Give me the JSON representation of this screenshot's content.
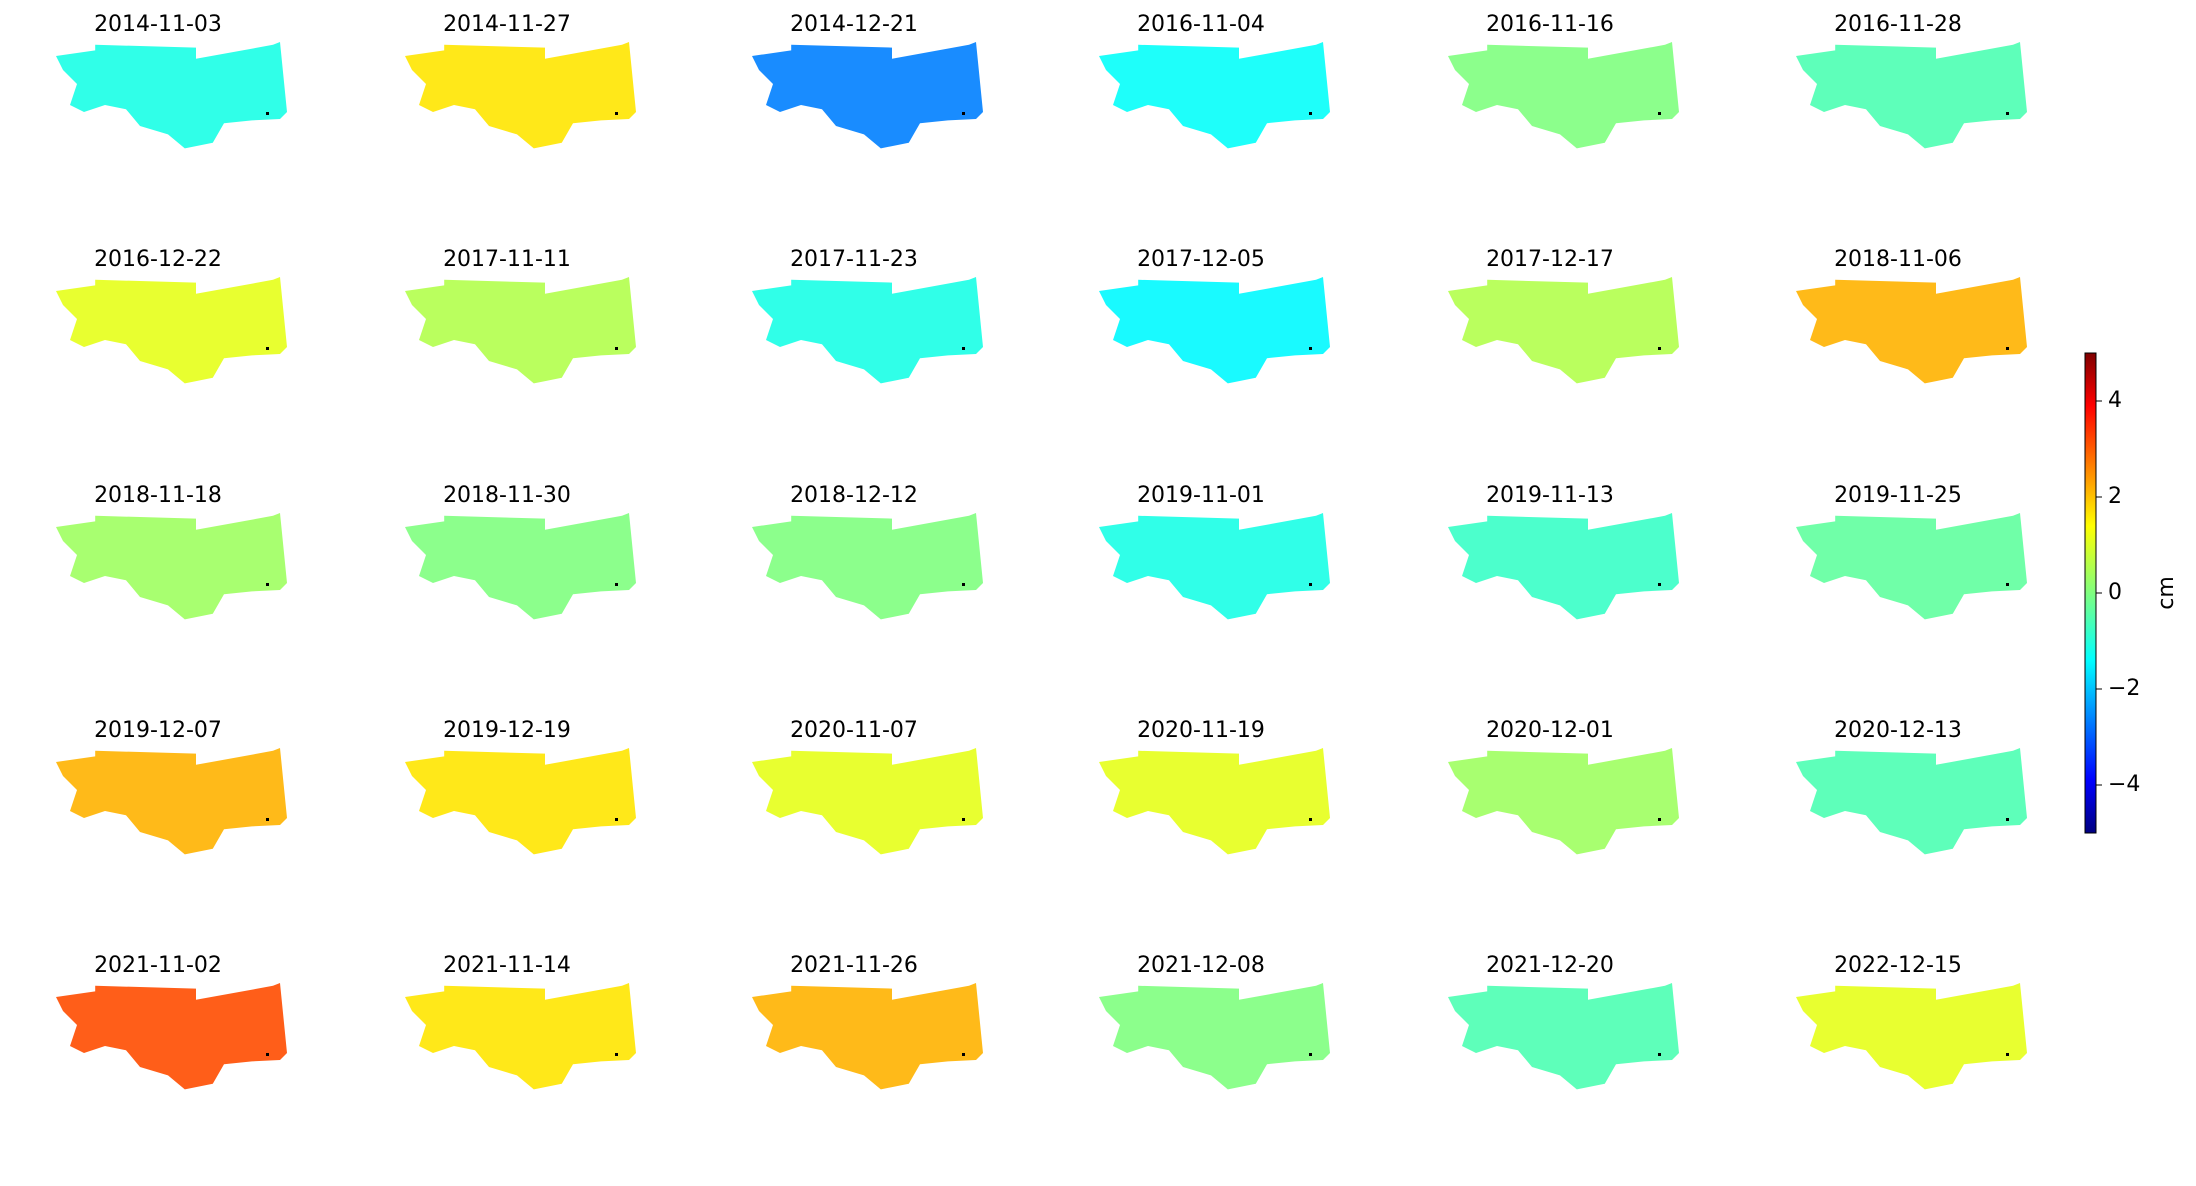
{
  "chart_data": {
    "type": "map-grid",
    "panels": [
      {
        "title": "2014-11-03",
        "value": -1
      },
      {
        "title": "2014-11-27",
        "value": 1.5
      },
      {
        "title": "2014-12-21",
        "value": -2.5
      },
      {
        "title": "2016-11-04",
        "value": -1.2
      },
      {
        "title": "2016-11-16",
        "value": 0
      },
      {
        "title": "2016-11-28",
        "value": -0.5
      },
      {
        "title": "2016-12-22",
        "value": 1
      },
      {
        "title": "2017-11-11",
        "value": 0.5
      },
      {
        "title": "2017-11-23",
        "value": -1
      },
      {
        "title": "2017-12-05",
        "value": -1.3
      },
      {
        "title": "2017-12-17",
        "value": 0.5
      },
      {
        "title": "2018-11-06",
        "value": 2
      },
      {
        "title": "2018-11-18",
        "value": 0.3
      },
      {
        "title": "2018-11-30",
        "value": 0
      },
      {
        "title": "2018-12-12",
        "value": 0
      },
      {
        "title": "2019-11-01",
        "value": -1
      },
      {
        "title": "2019-11-13",
        "value": -0.7
      },
      {
        "title": "2019-11-25",
        "value": -0.3
      },
      {
        "title": "2019-12-07",
        "value": 2
      },
      {
        "title": "2019-12-19",
        "value": 1.5
      },
      {
        "title": "2020-11-07",
        "value": 1
      },
      {
        "title": "2020-11-19",
        "value": 1
      },
      {
        "title": "2020-12-01",
        "value": 0.3
      },
      {
        "title": "2020-12-13",
        "value": -0.5
      },
      {
        "title": "2021-11-02",
        "value": 3
      },
      {
        "title": "2021-11-14",
        "value": 1.5
      },
      {
        "title": "2021-11-26",
        "value": 2
      },
      {
        "title": "2021-12-08",
        "value": 0
      },
      {
        "title": "2021-12-20",
        "value": -0.5
      },
      {
        "title": "2022-12-15",
        "value": 1
      }
    ],
    "colorbar": {
      "label": "cm",
      "lim": [
        -5,
        5
      ],
      "ticks": [
        {
          "value": -4,
          "label": "−4"
        },
        {
          "value": -2,
          "label": "−2"
        },
        0,
        2,
        4
      ]
    }
  }
}
